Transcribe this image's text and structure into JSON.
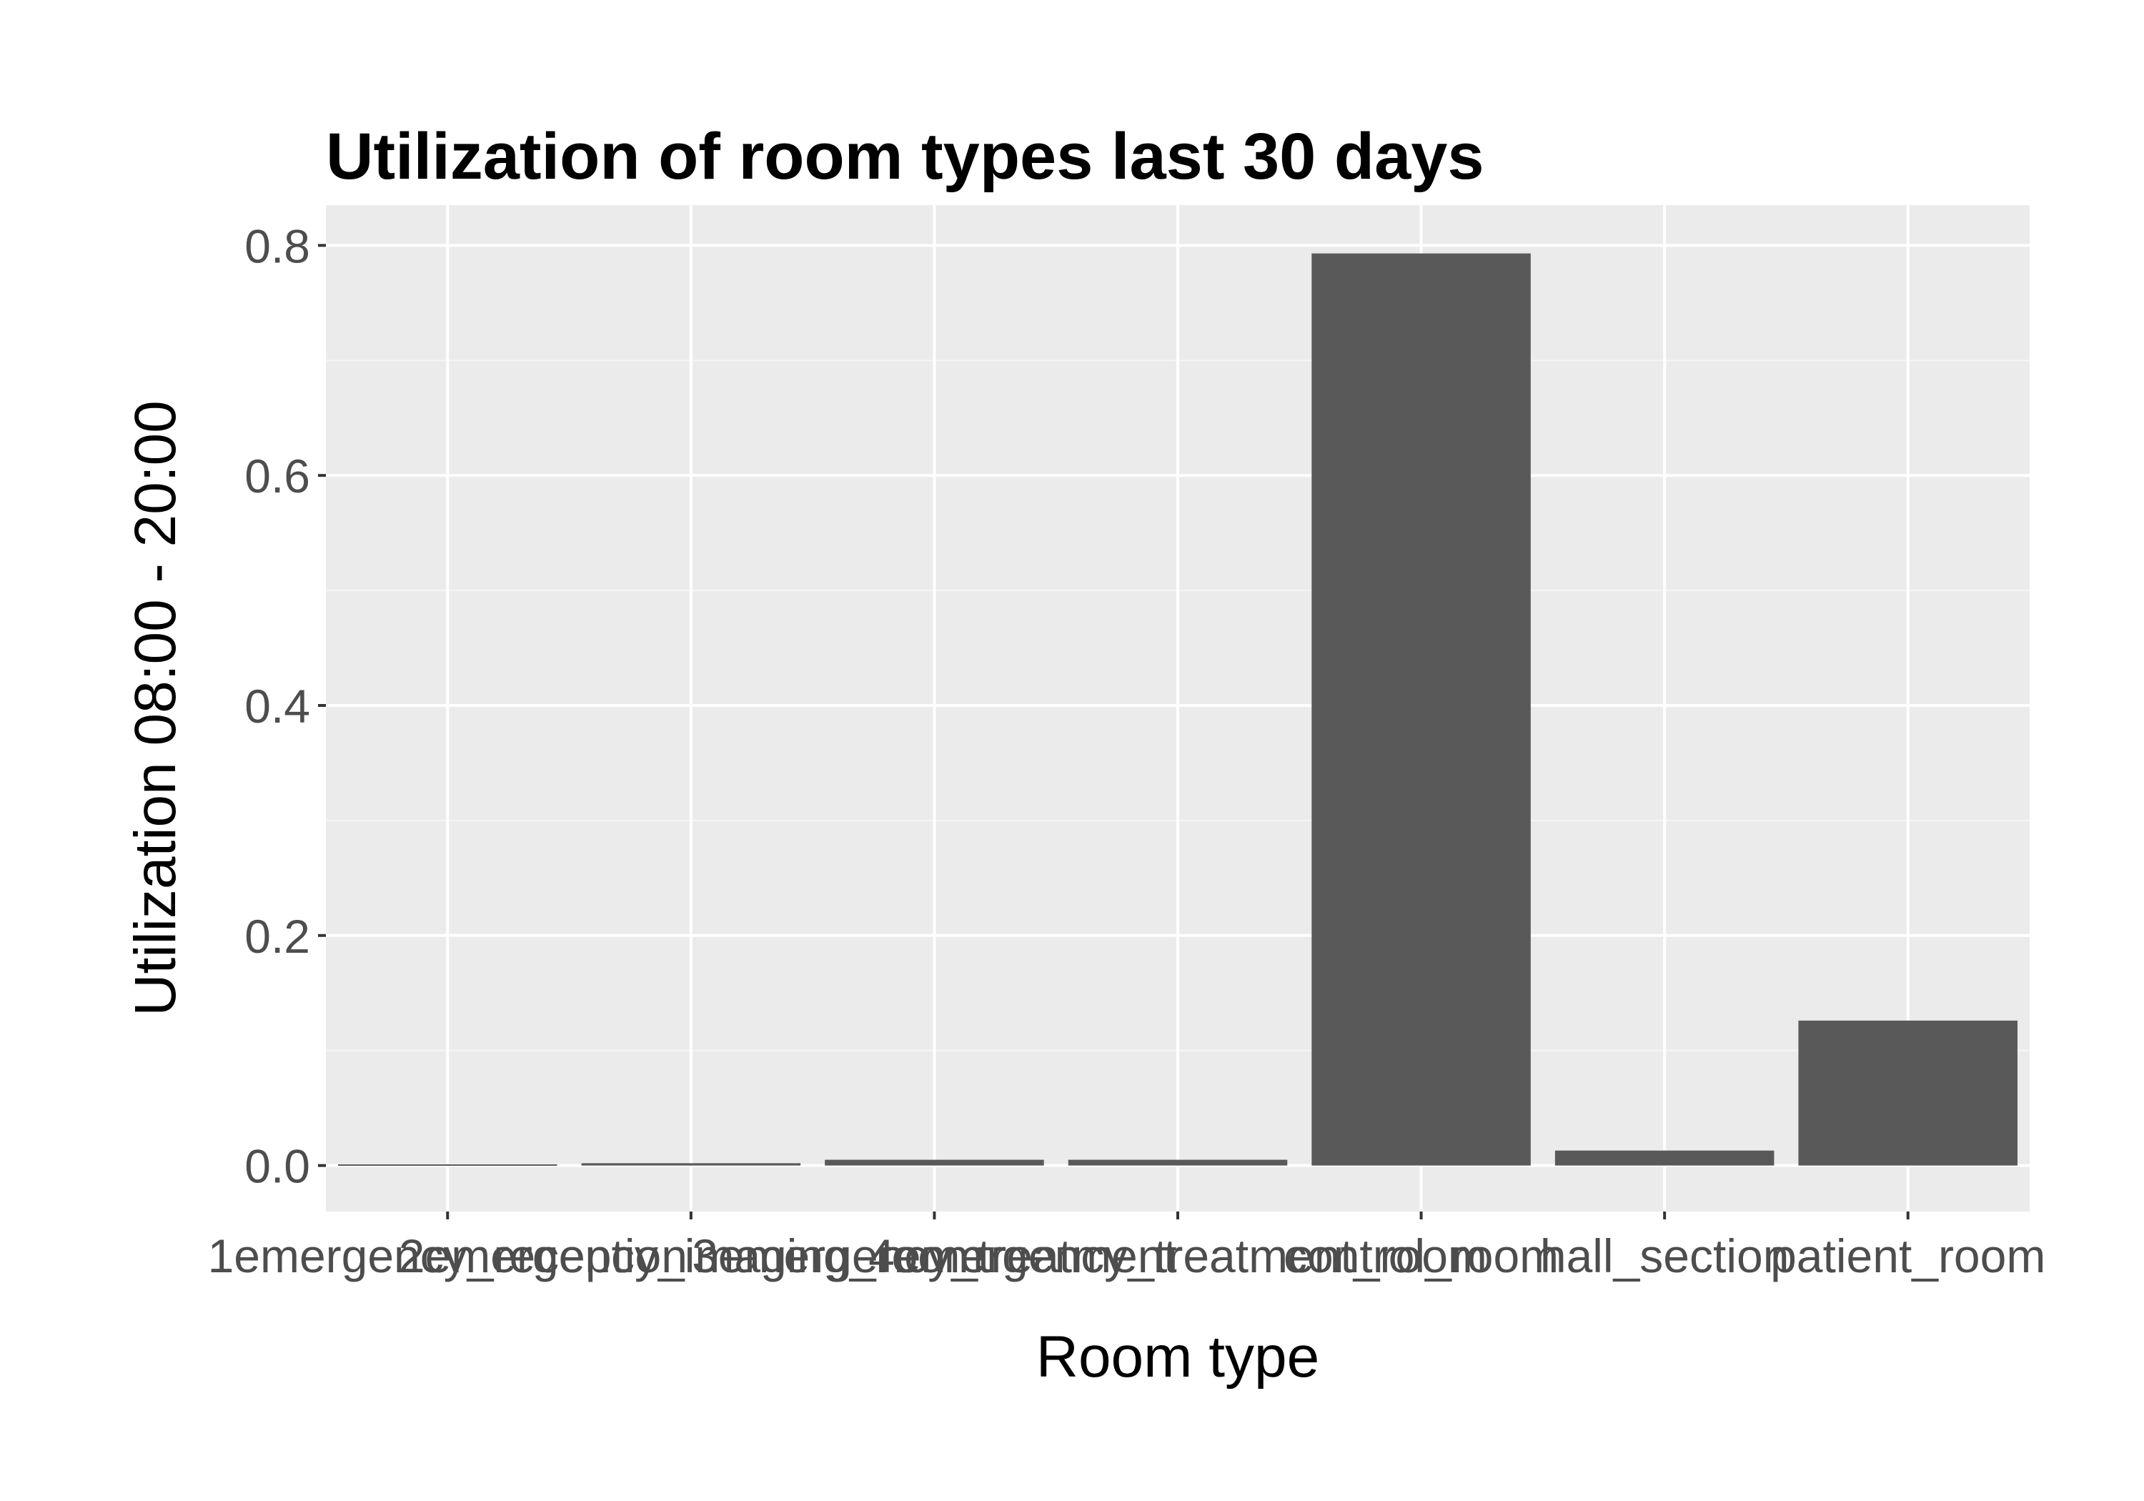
{
  "chart_data": {
    "type": "bar",
    "title": "Utilization of room types last 30 days",
    "xlabel": "Room type",
    "ylabel": "Utilization 08:00 - 20:00",
    "categories": [
      "1emergency_reception",
      "2emergency_imaging_room",
      "3emergency_treatment",
      "4emergency_treatment_room",
      "control_room",
      "hall_section",
      "patient_room"
    ],
    "values": [
      0.001,
      0.002,
      0.005,
      0.005,
      0.793,
      0.013,
      0.126
    ],
    "ylim": [
      -0.04,
      0.835
    ],
    "yticks": [
      0.0,
      0.2,
      0.4,
      0.6,
      0.8
    ],
    "ytick_labels": [
      "0.0",
      "0.2",
      "0.4",
      "0.6",
      "0.8"
    ],
    "grid": true,
    "legend": "none",
    "colors": {
      "bar": "#595959",
      "panel": "#ebebeb",
      "grid_major": "#ffffff",
      "grid_minor": "#f5f5f5",
      "tick_text": "#4d4d4d",
      "tick_mark": "#333333"
    }
  }
}
